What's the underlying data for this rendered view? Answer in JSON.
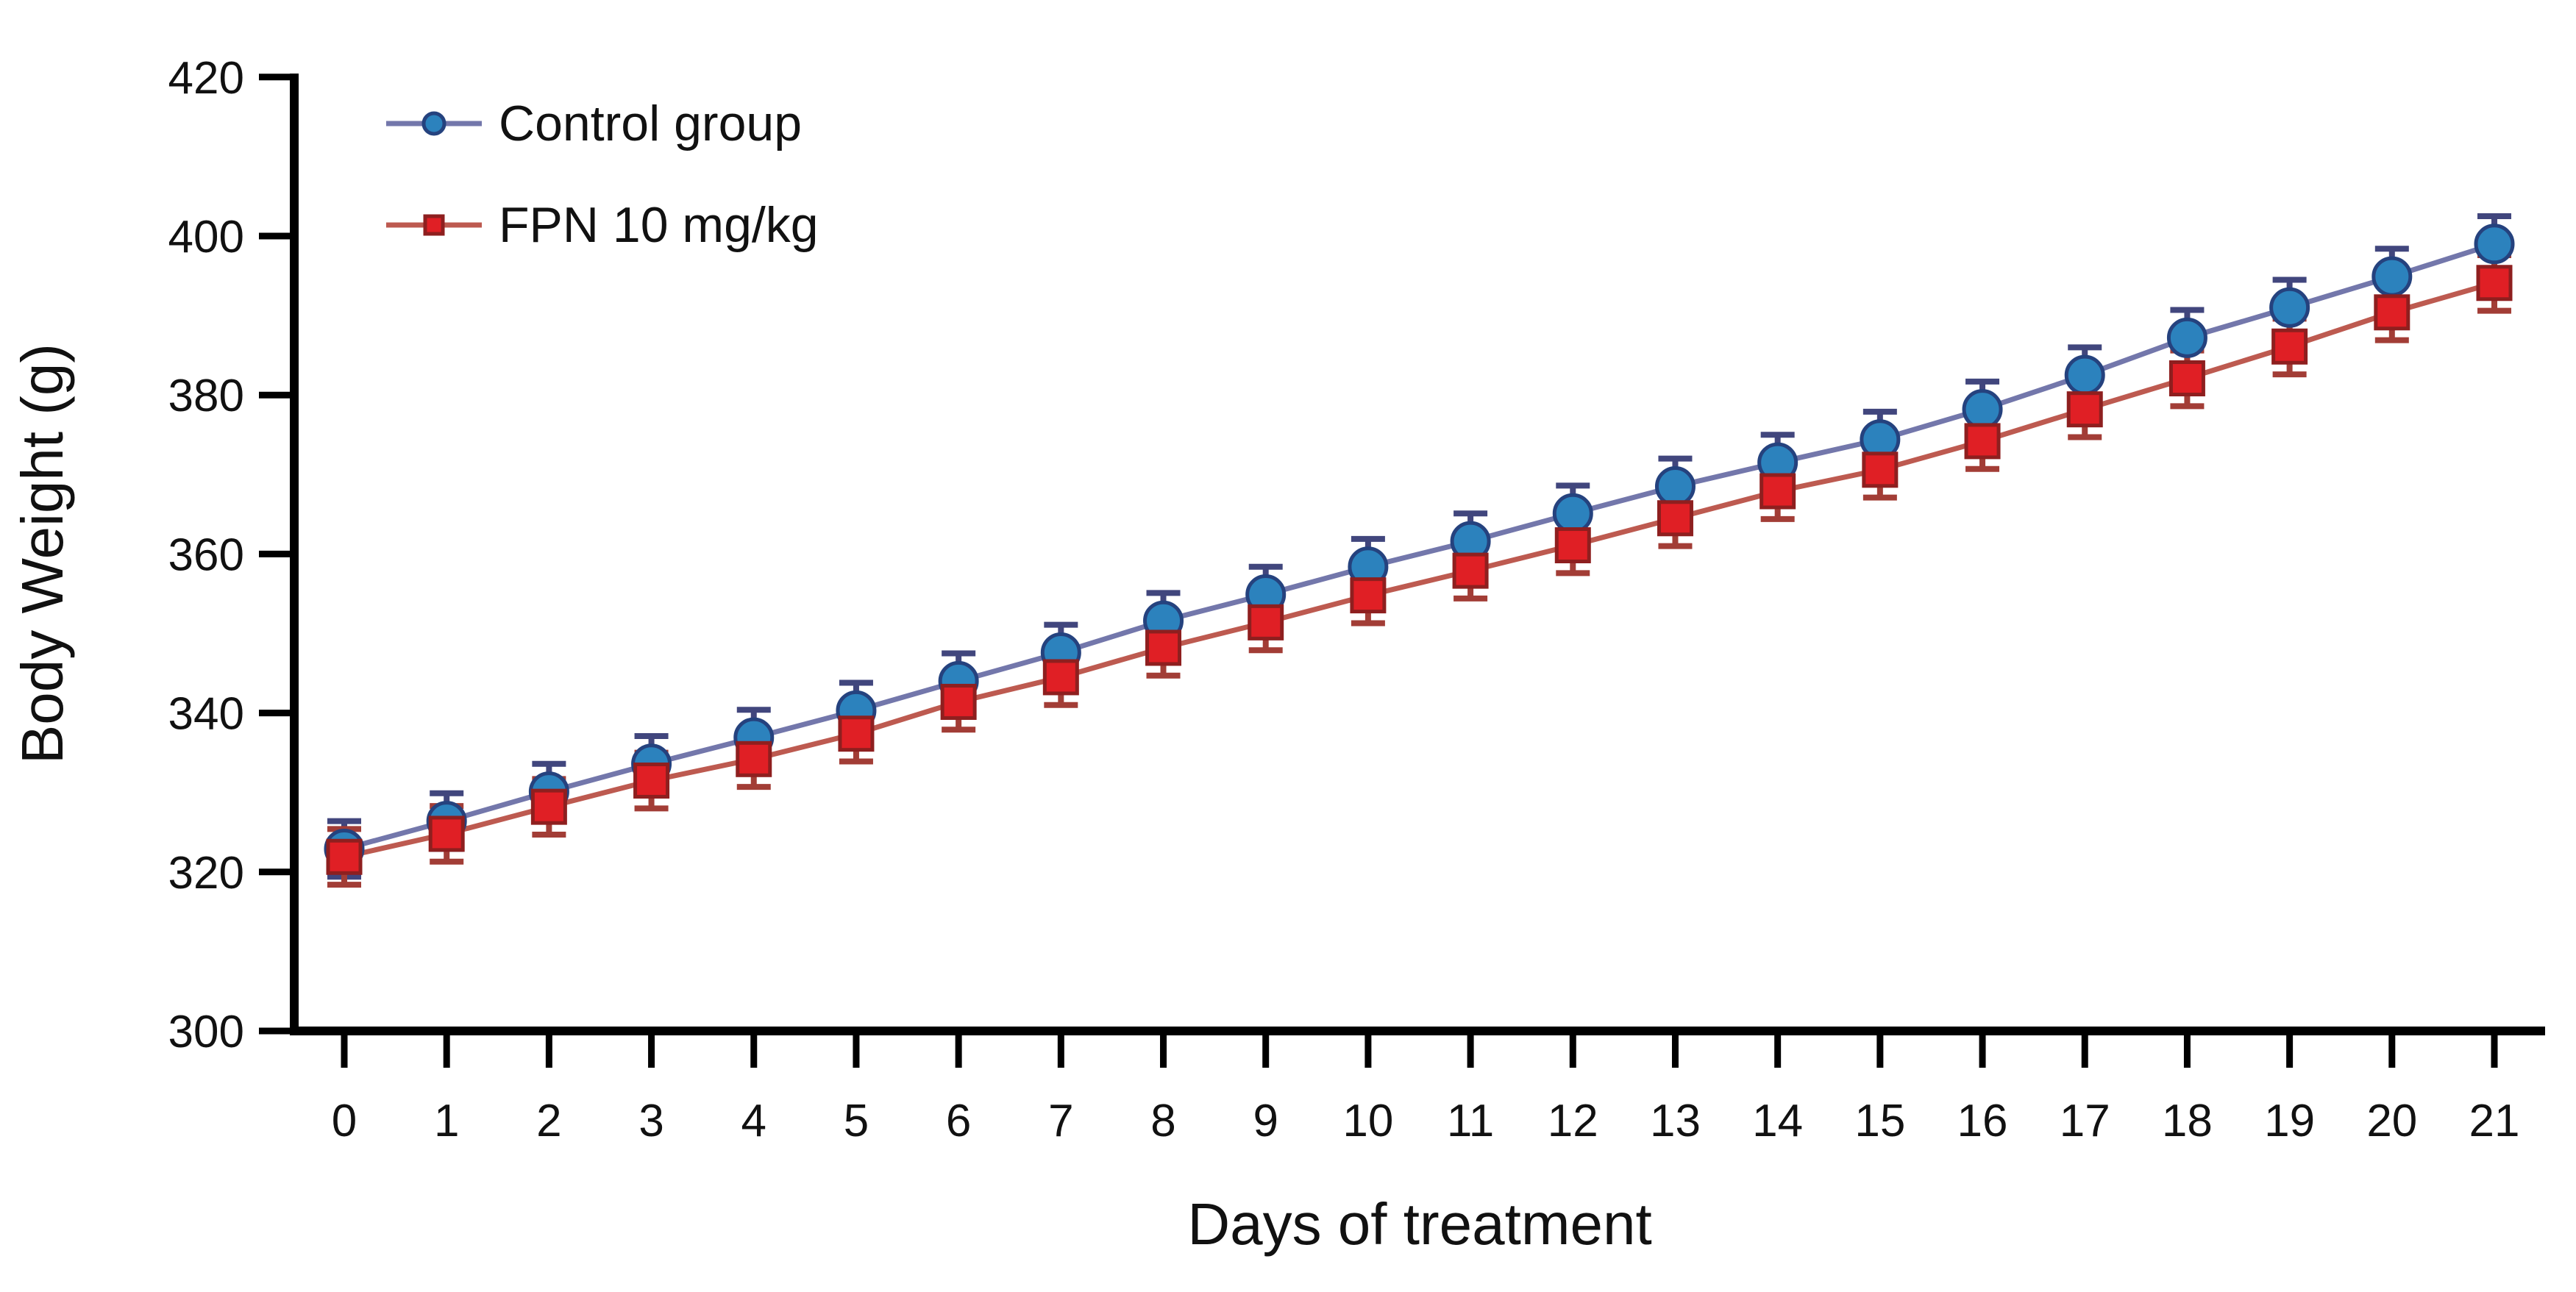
{
  "figure": {
    "background": "#ffffff",
    "text_color": "#111111",
    "axis_color": "#000000"
  },
  "chart_data": {
    "type": "line",
    "title": "",
    "xlabel": "Days of treatment",
    "ylabel": "Body Weight (g)",
    "x": [
      0,
      1,
      2,
      3,
      4,
      5,
      6,
      7,
      8,
      9,
      10,
      11,
      12,
      13,
      14,
      15,
      16,
      17,
      18,
      19,
      20,
      21
    ],
    "xticks": [
      0,
      1,
      2,
      3,
      4,
      5,
      6,
      7,
      8,
      9,
      10,
      11,
      12,
      13,
      14,
      15,
      16,
      17,
      18,
      19,
      20,
      21
    ],
    "yticks": [
      300,
      320,
      340,
      360,
      380,
      400,
      420
    ],
    "xlim": [
      0,
      21
    ],
    "ylim": [
      300,
      420
    ],
    "grid": false,
    "legend_position": "top-left-inside",
    "series": [
      {
        "name": "Control group",
        "marker": "circle",
        "error": 3.5,
        "colors": {
          "line": "#7377ab",
          "marker_fill": "#2c82bd",
          "marker_stroke": "#25427e",
          "error_bar": "#41467d"
        },
        "values": [
          322.9,
          326.4,
          330.1,
          333.6,
          336.9,
          340.3,
          344.0,
          347.6,
          351.6,
          354.9,
          358.4,
          361.6,
          365.1,
          368.5,
          371.5,
          374.4,
          378.2,
          382.5,
          387.2,
          391.0,
          394.9,
          399.0
        ]
      },
      {
        "name": "FPN 10 mg/kg",
        "marker": "square",
        "error": 3.5,
        "colors": {
          "line": "#bd5a50",
          "marker_fill": "#e01f25",
          "marker_stroke": "#8e1f1f",
          "error_bar": "#a23d36"
        },
        "values": [
          321.9,
          324.8,
          328.2,
          331.5,
          334.2,
          337.4,
          341.4,
          344.5,
          348.2,
          351.4,
          354.8,
          357.9,
          361.1,
          364.5,
          367.9,
          370.6,
          374.2,
          378.2,
          382.1,
          386.1,
          390.4,
          394.1
        ]
      }
    ]
  }
}
